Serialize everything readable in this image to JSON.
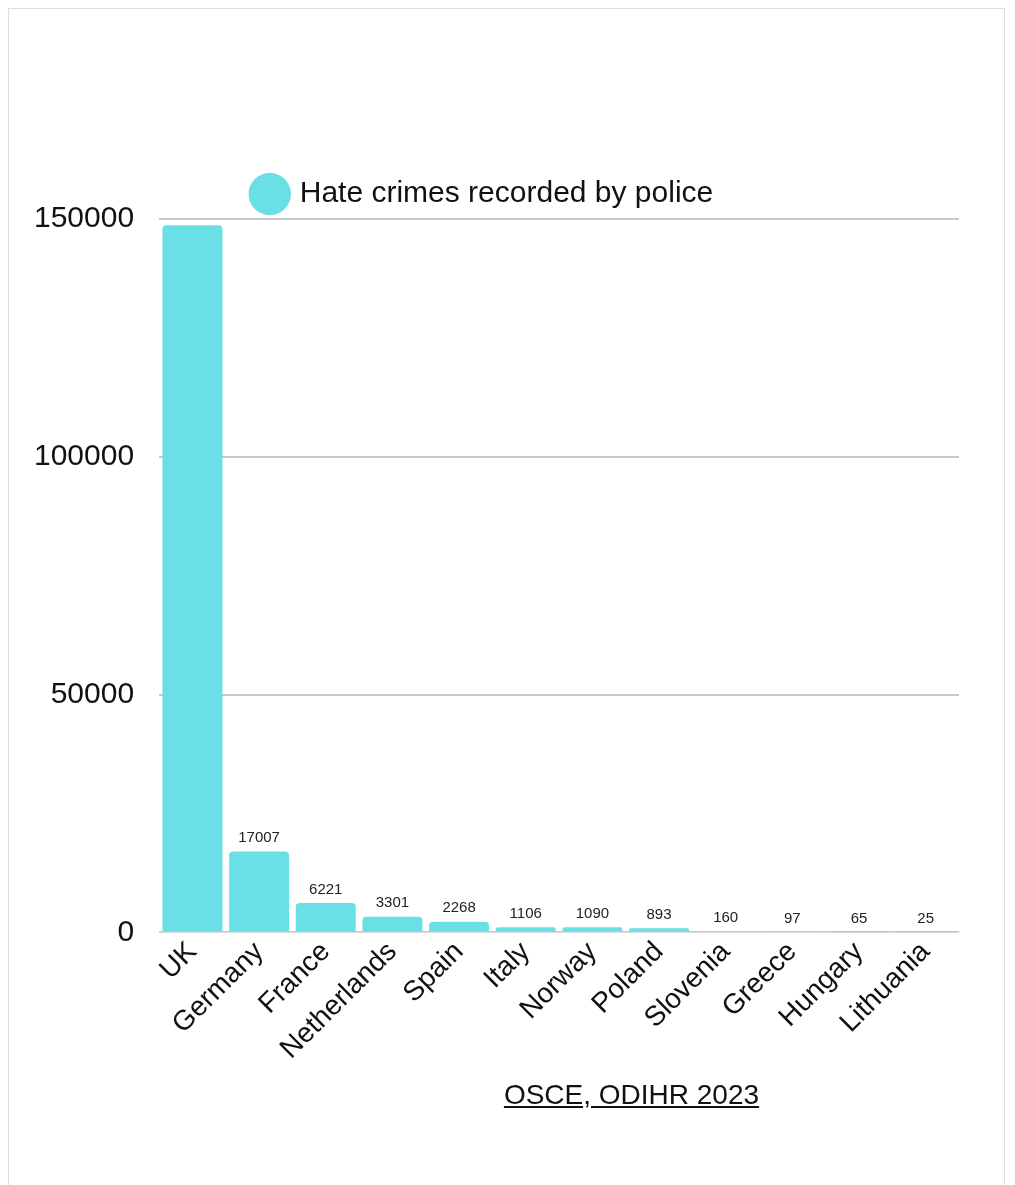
{
  "chart_data": {
    "type": "bar",
    "categories": [
      "UK",
      "Germany",
      "France",
      "Netherlands",
      "Spain",
      "Italy",
      "Norway",
      "Poland",
      "Slovenia",
      "Greece",
      "Hungary",
      "Lithuania"
    ],
    "series": [
      {
        "name": "Hate crimes recorded by police",
        "color": "#6ae0e6",
        "values": [
          148700,
          17007,
          6221,
          3301,
          2268,
          1106,
          1090,
          893,
          160,
          97,
          65,
          25
        ],
        "value_labels": [
          null,
          "17007",
          "6221",
          "3301",
          "2268",
          "1106",
          "1090",
          "893",
          "160",
          "97",
          "65",
          "25"
        ]
      }
    ],
    "ylim": [
      0,
      150000
    ],
    "yticks": [
      0,
      50000,
      100000,
      150000
    ],
    "grid": "y",
    "legend": "top",
    "annotations": [
      "OSCE, ODIHR 2023"
    ]
  }
}
